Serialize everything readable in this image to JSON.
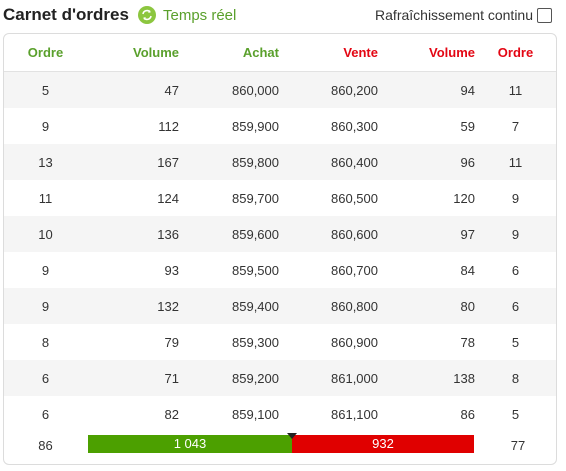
{
  "header": {
    "title": "Carnet d'ordres",
    "realtime_label": "Temps réel",
    "refresh_label": "Rafraîchissement continu",
    "refresh_checked": false
  },
  "colors": {
    "buy": "#5aa02c",
    "sell": "#e30613",
    "buy_bar": "#4ca000",
    "sell_bar": "#e00000"
  },
  "columns": [
    "Ordre",
    "Volume",
    "Achat",
    "Vente",
    "Volume",
    "Ordre"
  ],
  "rows": [
    [
      "5",
      "47",
      "860,000",
      "860,200",
      "94",
      "11"
    ],
    [
      "9",
      "112",
      "859,900",
      "860,300",
      "59",
      "7"
    ],
    [
      "13",
      "167",
      "859,800",
      "860,400",
      "96",
      "11"
    ],
    [
      "11",
      "124",
      "859,700",
      "860,500",
      "120",
      "9"
    ],
    [
      "10",
      "136",
      "859,600",
      "860,600",
      "97",
      "9"
    ],
    [
      "9",
      "93",
      "859,500",
      "860,700",
      "84",
      "6"
    ],
    [
      "9",
      "132",
      "859,400",
      "860,800",
      "80",
      "6"
    ],
    [
      "8",
      "79",
      "859,300",
      "860,900",
      "78",
      "5"
    ],
    [
      "6",
      "71",
      "859,200",
      "861,000",
      "138",
      "8"
    ],
    [
      "6",
      "82",
      "859,100",
      "861,100",
      "86",
      "5"
    ]
  ],
  "totals": {
    "buy_orders": "86",
    "buy_volume": "1 043",
    "sell_volume": "932",
    "sell_orders": "77",
    "buy_volume_value": 1043,
    "sell_volume_value": 932
  }
}
